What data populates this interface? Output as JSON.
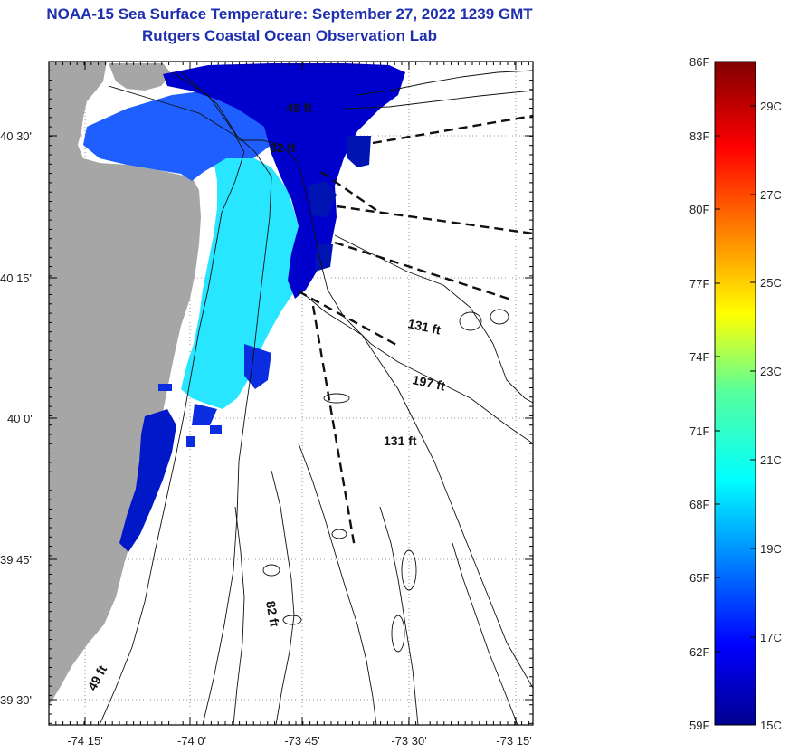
{
  "header": {
    "title": "NOAA-15 Sea Surface Temperature:  September 27, 2022 1239 GMT",
    "subtitle": "Rutgers Coastal Ocean Observation Lab"
  },
  "map": {
    "lat_labels": [
      "40 30'",
      "40 15'",
      "40 0'",
      "39 45'",
      "39 30'"
    ],
    "lon_labels": [
      "-74 15'",
      "-74 0'",
      "-73 45'",
      "-73 30'",
      "-73 15'"
    ],
    "depth_labels": [
      "49 ft",
      "82 ft",
      "131 ft",
      "197 ft",
      "131 ft",
      "82 ft",
      "49 ft"
    ],
    "colors": {
      "land": "#a6a6a6",
      "sst_cold": "#0000b4",
      "sst_mid": "#1f5fff",
      "sst_warm": "#28e6ff",
      "title": "#1f2fae"
    }
  },
  "colorbar": {
    "f_labels": [
      "86F",
      "83F",
      "80F",
      "77F",
      "74F",
      "71F",
      "68F",
      "65F",
      "62F",
      "59F"
    ],
    "c_labels": [
      "29C",
      "27C",
      "25C",
      "23C",
      "21C",
      "19C",
      "17C",
      "15C"
    ]
  }
}
